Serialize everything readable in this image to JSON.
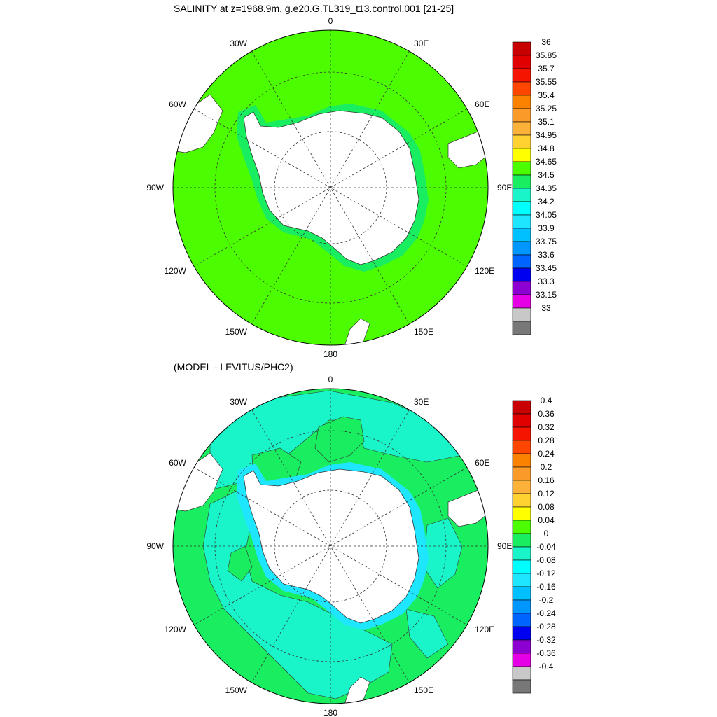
{
  "top_panel": {
    "title": "SALINITY at z=1968.9m, g.e20.G.TL319_t13.control.001 [21-25]",
    "longitude_labels": [
      "0",
      "30E",
      "60E",
      "90E",
      "120E",
      "150E",
      "180",
      "150W",
      "120W",
      "90W",
      "60W",
      "30W"
    ],
    "ocean_fill_value_range": "34.65-34.8",
    "colorbar": {
      "labels": [
        "36",
        "35.85",
        "35.7",
        "35.55",
        "35.4",
        "35.25",
        "35.1",
        "34.95",
        "34.8",
        "34.65",
        "34.5",
        "34.35",
        "34.2",
        "34.05",
        "33.9",
        "33.75",
        "33.6",
        "33.45",
        "33.3",
        "33.15",
        "33"
      ],
      "colors": [
        "#c80000",
        "#e00000",
        "#f41400",
        "#ff4600",
        "#fa8200",
        "#fa9a28",
        "#fcb238",
        "#ffd232",
        "#ffff00",
        "#4cfc00",
        "#19ed60",
        "#19f5c8",
        "#00ffff",
        "#1ee6ff",
        "#00c0ff",
        "#0096ff",
        "#0064ff",
        "#0000f0",
        "#8c00d2",
        "#e600e6",
        "#c8c8c8",
        "#787878"
      ]
    }
  },
  "bottom_panel": {
    "title": "(MODEL - LEVITUS/PHC2)",
    "longitude_labels": [
      "0",
      "30E",
      "60E",
      "90E",
      "120E",
      "150E",
      "180",
      "150W",
      "120W",
      "90W",
      "60W",
      "30W"
    ],
    "colorbar": {
      "labels": [
        "0.4",
        "0.36",
        "0.32",
        "0.28",
        "0.24",
        "0.2",
        "0.16",
        "0.12",
        "0.08",
        "0.04",
        "0",
        "-0.04",
        "-0.08",
        "-0.12",
        "-0.16",
        "-0.2",
        "-0.24",
        "-0.28",
        "-0.32",
        "-0.36",
        "-0.4"
      ],
      "colors": [
        "#c80000",
        "#e00000",
        "#f41400",
        "#ff4600",
        "#fa8200",
        "#fa9a28",
        "#fcb238",
        "#ffd232",
        "#ffff00",
        "#4cfc00",
        "#19ed60",
        "#19f5c8",
        "#00ffff",
        "#1ee6ff",
        "#00c0ff",
        "#0096ff",
        "#0064ff",
        "#0000f0",
        "#8c00d2",
        "#e600e6",
        "#c8c8c8",
        "#787878"
      ]
    }
  }
}
